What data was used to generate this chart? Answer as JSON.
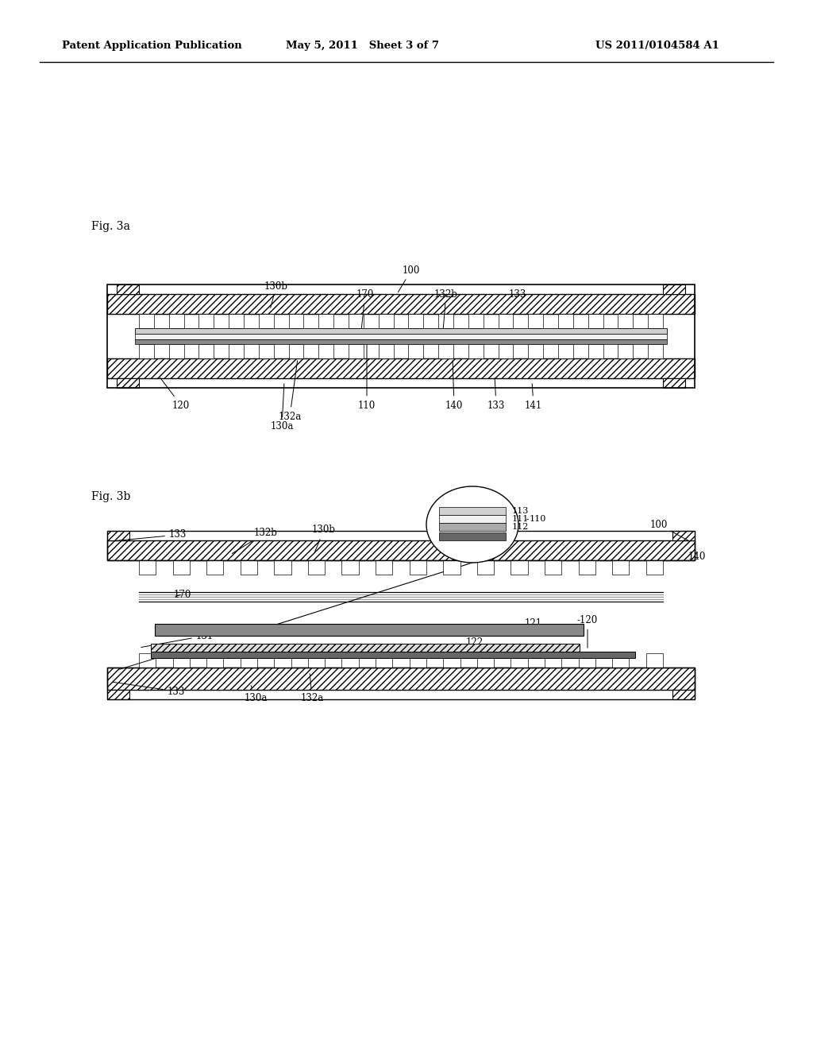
{
  "header_left": "Patent Application Publication",
  "header_mid": "May 5, 2011   Sheet 3 of 7",
  "header_right": "US 2011/0104584 A1",
  "fig3a_label": "Fig. 3a",
  "fig3b_label": "Fig. 3b",
  "bg_color": "#ffffff"
}
